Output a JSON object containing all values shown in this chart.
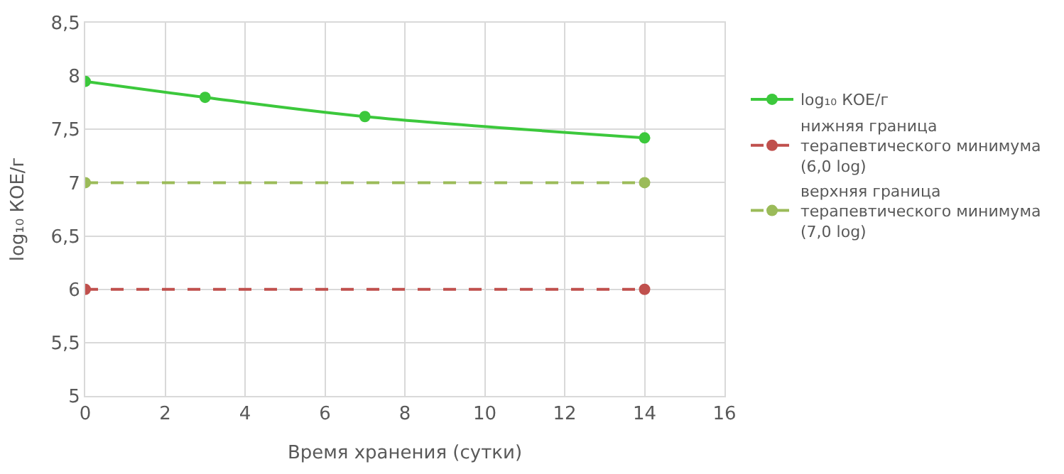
{
  "chart_data": {
    "type": "line",
    "xlabel": "Время хранения (сутки)",
    "ylabel": "log₁₀ КОЕ/г",
    "xlim": [
      0,
      16
    ],
    "xticks": [
      0,
      2,
      4,
      6,
      8,
      10,
      12,
      14,
      16
    ],
    "ylim": [
      5,
      8.5
    ],
    "yticks": [
      5,
      {
        "value": 5.5,
        "label": "5,5"
      },
      6,
      {
        "value": 6.5,
        "label": "6,5"
      },
      7,
      {
        "value": 7.5,
        "label": "7,5"
      },
      8,
      {
        "value": 8.5,
        "label": "8,5"
      }
    ],
    "grid": true,
    "legend": "right",
    "marker": "circle",
    "series": [
      {
        "name": "log₁₀ КОЕ/г",
        "color": "#3cc83c",
        "x": [
          0,
          3,
          7,
          14
        ],
        "values": [
          7.95,
          7.8,
          7.62,
          7.42
        ],
        "line_style": "solid"
      },
      {
        "name": "нижняя граница\nтерапевтического минимума\n(6,0 log)",
        "color": "#c0504d",
        "x": [
          0,
          14
        ],
        "values": [
          6,
          6
        ],
        "line_style": "dashed"
      },
      {
        "name": "верхняя граница\nтерапевтического минимума\n(7,0 log)",
        "color": "#9bbb59",
        "x": [
          0,
          14
        ],
        "values": [
          7,
          7
        ],
        "line_style": "dashed"
      }
    ]
  }
}
